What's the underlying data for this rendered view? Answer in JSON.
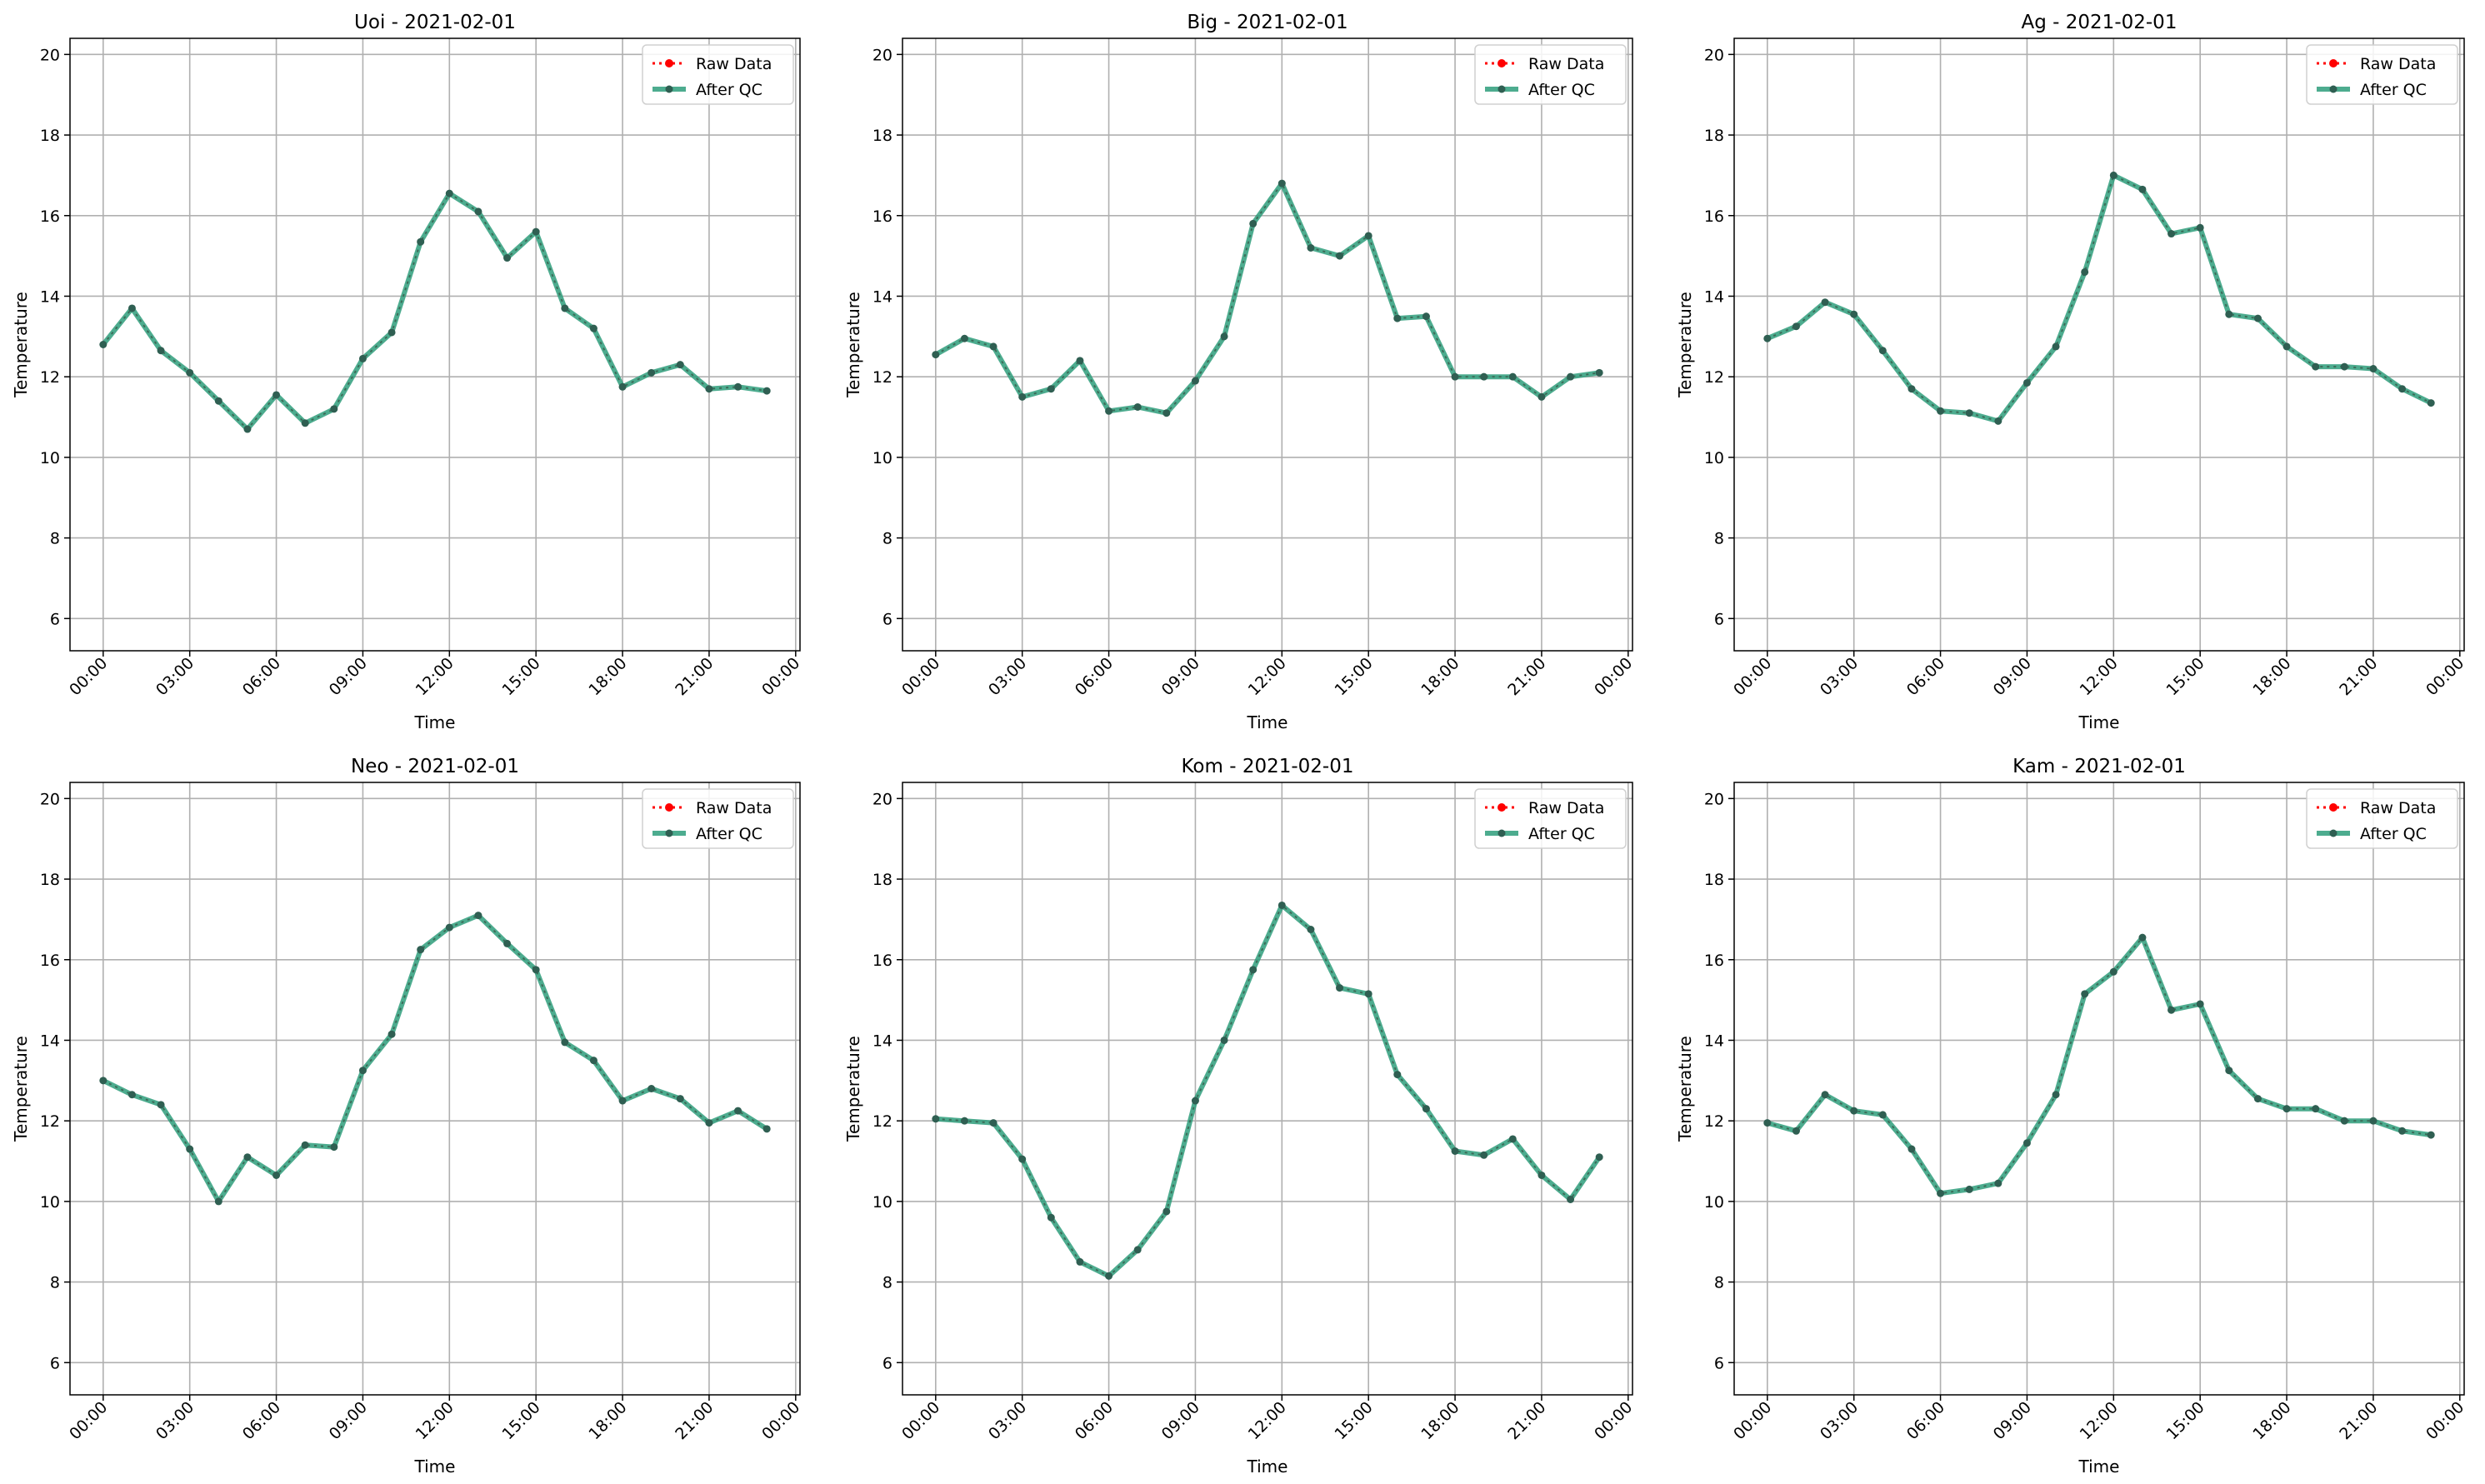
{
  "figure": {
    "legend": {
      "raw_label": "Raw Data",
      "qc_label": "After QC",
      "placement": "top-right"
    },
    "colors": {
      "raw": "#ff0000",
      "qc": "#2e9e7b",
      "marker": "#2f5f52",
      "grid": "#b0b0b0",
      "axis": "#000000"
    }
  },
  "chart_data": [
    {
      "type": "line",
      "title": "Uoi - 2021-02-01",
      "xlabel": "Time",
      "ylabel": "Temperature",
      "ylim": [
        5.2,
        20.4
      ],
      "yticks": [
        6,
        8,
        10,
        12,
        14,
        16,
        18,
        20
      ],
      "xlim": [
        "2021-02-01 00:00",
        "2021-02-02 00:00"
      ],
      "xticks": [
        "00:00",
        "03:00",
        "06:00",
        "09:00",
        "12:00",
        "15:00",
        "18:00",
        "21:00",
        "00:00"
      ],
      "grid": true,
      "x": [
        "00:00",
        "01:00",
        "02:00",
        "03:00",
        "04:00",
        "05:00",
        "06:00",
        "07:00",
        "08:00",
        "09:00",
        "10:00",
        "11:00",
        "12:00",
        "13:00",
        "14:00",
        "15:00",
        "16:00",
        "17:00",
        "18:00",
        "19:00",
        "20:00",
        "21:00",
        "22:00",
        "23:00"
      ],
      "series": [
        {
          "name": "Raw Data",
          "values": [
            12.8,
            13.7,
            12.65,
            12.1,
            11.4,
            10.7,
            11.55,
            10.85,
            11.2,
            12.45,
            13.1,
            15.35,
            16.55,
            16.1,
            14.95,
            15.6,
            13.7,
            13.2,
            11.75,
            12.1,
            12.3,
            11.7,
            11.75,
            11.65
          ]
        },
        {
          "name": "After QC",
          "values": [
            12.8,
            13.7,
            12.65,
            12.1,
            11.4,
            10.7,
            11.55,
            10.85,
            11.2,
            12.45,
            13.1,
            15.35,
            16.55,
            16.1,
            14.95,
            15.6,
            13.7,
            13.2,
            11.75,
            12.1,
            12.3,
            11.7,
            11.75,
            11.65
          ]
        }
      ]
    },
    {
      "type": "line",
      "title": "Big - 2021-02-01",
      "xlabel": "Time",
      "ylabel": "Temperature",
      "ylim": [
        5.2,
        20.4
      ],
      "yticks": [
        6,
        8,
        10,
        12,
        14,
        16,
        18,
        20
      ],
      "xlim": [
        "2021-02-01 00:00",
        "2021-02-02 00:00"
      ],
      "xticks": [
        "00:00",
        "03:00",
        "06:00",
        "09:00",
        "12:00",
        "15:00",
        "18:00",
        "21:00",
        "00:00"
      ],
      "grid": true,
      "x": [
        "00:00",
        "01:00",
        "02:00",
        "03:00",
        "04:00",
        "05:00",
        "06:00",
        "07:00",
        "08:00",
        "09:00",
        "10:00",
        "11:00",
        "12:00",
        "13:00",
        "14:00",
        "15:00",
        "16:00",
        "17:00",
        "18:00",
        "19:00",
        "20:00",
        "21:00",
        "22:00",
        "23:00"
      ],
      "series": [
        {
          "name": "Raw Data",
          "values": [
            12.55,
            12.95,
            12.75,
            11.5,
            11.7,
            12.4,
            11.15,
            11.25,
            11.1,
            11.9,
            13.0,
            15.8,
            16.8,
            15.2,
            15.0,
            15.5,
            13.45,
            13.5,
            12.0,
            12.0,
            12.0,
            11.5,
            12.0,
            12.1
          ]
        },
        {
          "name": "After QC",
          "values": [
            12.55,
            12.95,
            12.75,
            11.5,
            11.7,
            12.4,
            11.15,
            11.25,
            11.1,
            11.9,
            13.0,
            15.8,
            16.8,
            15.2,
            15.0,
            15.5,
            13.45,
            13.5,
            12.0,
            12.0,
            12.0,
            11.5,
            12.0,
            12.1
          ]
        }
      ]
    },
    {
      "type": "line",
      "title": "Ag - 2021-02-01",
      "xlabel": "Time",
      "ylabel": "Temperature",
      "ylim": [
        5.2,
        20.4
      ],
      "yticks": [
        6,
        8,
        10,
        12,
        14,
        16,
        18,
        20
      ],
      "xlim": [
        "2021-02-01 00:00",
        "2021-02-02 00:00"
      ],
      "xticks": [
        "00:00",
        "03:00",
        "06:00",
        "09:00",
        "12:00",
        "15:00",
        "18:00",
        "21:00",
        "00:00"
      ],
      "grid": true,
      "x": [
        "00:00",
        "01:00",
        "02:00",
        "03:00",
        "04:00",
        "05:00",
        "06:00",
        "07:00",
        "08:00",
        "09:00",
        "10:00",
        "11:00",
        "12:00",
        "13:00",
        "14:00",
        "15:00",
        "16:00",
        "17:00",
        "18:00",
        "19:00",
        "20:00",
        "21:00",
        "22:00",
        "23:00"
      ],
      "series": [
        {
          "name": "Raw Data",
          "values": [
            12.95,
            13.25,
            13.85,
            13.55,
            12.65,
            11.7,
            11.15,
            11.1,
            10.9,
            11.85,
            12.75,
            14.6,
            17.0,
            16.65,
            15.55,
            15.7,
            13.55,
            13.45,
            12.75,
            12.25,
            12.25,
            12.2,
            11.7,
            11.35
          ]
        },
        {
          "name": "After QC",
          "values": [
            12.95,
            13.25,
            13.85,
            13.55,
            12.65,
            11.7,
            11.15,
            11.1,
            10.9,
            11.85,
            12.75,
            14.6,
            17.0,
            16.65,
            15.55,
            15.7,
            13.55,
            13.45,
            12.75,
            12.25,
            12.25,
            12.2,
            11.7,
            11.35
          ]
        }
      ]
    },
    {
      "type": "line",
      "title": "Neo - 2021-02-01",
      "xlabel": "Time",
      "ylabel": "Temperature",
      "ylim": [
        5.2,
        20.4
      ],
      "yticks": [
        6,
        8,
        10,
        12,
        14,
        16,
        18,
        20
      ],
      "xlim": [
        "2021-02-01 00:00",
        "2021-02-02 00:00"
      ],
      "xticks": [
        "00:00",
        "03:00",
        "06:00",
        "09:00",
        "12:00",
        "15:00",
        "18:00",
        "21:00",
        "00:00"
      ],
      "grid": true,
      "x": [
        "00:00",
        "01:00",
        "02:00",
        "03:00",
        "04:00",
        "05:00",
        "06:00",
        "07:00",
        "08:00",
        "09:00",
        "10:00",
        "11:00",
        "12:00",
        "13:00",
        "14:00",
        "15:00",
        "16:00",
        "17:00",
        "18:00",
        "19:00",
        "20:00",
        "21:00",
        "22:00",
        "23:00"
      ],
      "series": [
        {
          "name": "Raw Data",
          "values": [
            13.0,
            12.65,
            12.4,
            11.3,
            10.0,
            11.1,
            10.65,
            11.4,
            11.35,
            13.25,
            14.15,
            16.25,
            16.8,
            17.1,
            16.4,
            15.75,
            13.95,
            13.5,
            12.5,
            12.8,
            12.55,
            11.95,
            12.25,
            11.8
          ]
        },
        {
          "name": "After QC",
          "values": [
            13.0,
            12.65,
            12.4,
            11.3,
            10.0,
            11.1,
            10.65,
            11.4,
            11.35,
            13.25,
            14.15,
            16.25,
            16.8,
            17.1,
            16.4,
            15.75,
            13.95,
            13.5,
            12.5,
            12.8,
            12.55,
            11.95,
            12.25,
            11.8
          ]
        }
      ]
    },
    {
      "type": "line",
      "title": "Kom - 2021-02-01",
      "xlabel": "Time",
      "ylabel": "Temperature",
      "ylim": [
        5.2,
        20.4
      ],
      "yticks": [
        6,
        8,
        10,
        12,
        14,
        16,
        18,
        20
      ],
      "xlim": [
        "2021-02-01 00:00",
        "2021-02-02 00:00"
      ],
      "xticks": [
        "00:00",
        "03:00",
        "06:00",
        "09:00",
        "12:00",
        "15:00",
        "18:00",
        "21:00",
        "00:00"
      ],
      "grid": true,
      "x": [
        "00:00",
        "01:00",
        "02:00",
        "03:00",
        "04:00",
        "05:00",
        "06:00",
        "07:00",
        "08:00",
        "09:00",
        "10:00",
        "11:00",
        "12:00",
        "13:00",
        "14:00",
        "15:00",
        "16:00",
        "17:00",
        "18:00",
        "19:00",
        "20:00",
        "21:00",
        "22:00",
        "23:00"
      ],
      "series": [
        {
          "name": "Raw Data",
          "values": [
            12.05,
            12.0,
            11.95,
            11.05,
            9.6,
            8.5,
            8.15,
            8.8,
            9.75,
            12.5,
            14.0,
            15.75,
            17.35,
            16.75,
            15.3,
            15.15,
            13.15,
            12.3,
            11.25,
            11.15,
            11.55,
            10.65,
            10.05,
            11.1
          ]
        },
        {
          "name": "After QC",
          "values": [
            12.05,
            12.0,
            11.95,
            11.05,
            9.6,
            8.5,
            8.15,
            8.8,
            9.75,
            12.5,
            14.0,
            15.75,
            17.35,
            16.75,
            15.3,
            15.15,
            13.15,
            12.3,
            11.25,
            11.15,
            11.55,
            10.65,
            10.05,
            11.1
          ]
        }
      ]
    },
    {
      "type": "line",
      "title": "Kam - 2021-02-01",
      "xlabel": "Time",
      "ylabel": "Temperature",
      "ylim": [
        5.2,
        20.4
      ],
      "yticks": [
        6,
        8,
        10,
        12,
        14,
        16,
        18,
        20
      ],
      "xlim": [
        "2021-02-01 00:00",
        "2021-02-02 00:00"
      ],
      "xticks": [
        "00:00",
        "03:00",
        "06:00",
        "09:00",
        "12:00",
        "15:00",
        "18:00",
        "21:00",
        "00:00"
      ],
      "grid": true,
      "x": [
        "00:00",
        "01:00",
        "02:00",
        "03:00",
        "04:00",
        "05:00",
        "06:00",
        "07:00",
        "08:00",
        "09:00",
        "10:00",
        "11:00",
        "12:00",
        "13:00",
        "14:00",
        "15:00",
        "16:00",
        "17:00",
        "18:00",
        "19:00",
        "20:00",
        "21:00",
        "22:00",
        "23:00"
      ],
      "series": [
        {
          "name": "Raw Data",
          "values": [
            11.95,
            11.75,
            12.65,
            12.25,
            12.15,
            11.3,
            10.2,
            10.3,
            10.45,
            11.45,
            12.65,
            15.15,
            15.7,
            16.55,
            14.75,
            14.9,
            13.25,
            12.55,
            12.3,
            12.3,
            12.0,
            12.0,
            11.75,
            11.65
          ]
        },
        {
          "name": "After QC",
          "values": [
            11.95,
            11.75,
            12.65,
            12.25,
            12.15,
            11.3,
            10.2,
            10.3,
            10.45,
            11.45,
            12.65,
            15.15,
            15.7,
            16.55,
            14.75,
            14.9,
            13.25,
            12.55,
            12.3,
            12.3,
            12.0,
            12.0,
            11.75,
            11.65
          ]
        }
      ]
    }
  ]
}
